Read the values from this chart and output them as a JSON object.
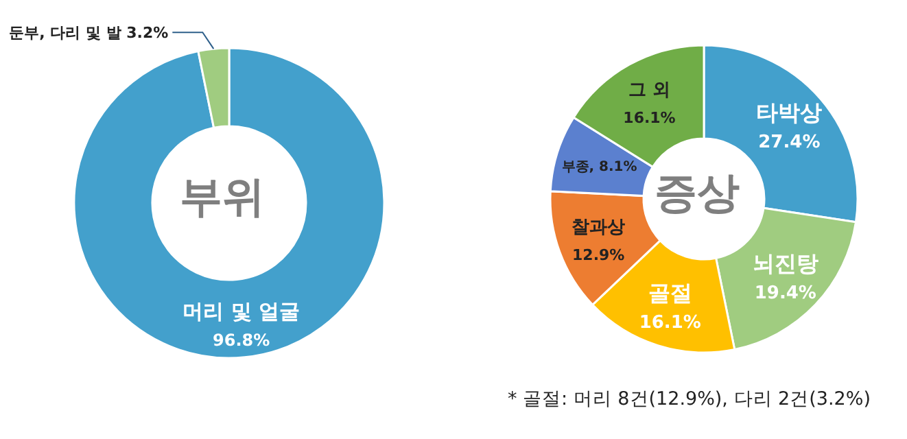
{
  "chart_data": [
    {
      "type": "donut",
      "title": "부위",
      "categories": [
        "머리 및 얼굴",
        "둔부, 다리 및 발"
      ],
      "values": [
        96.8,
        3.2
      ],
      "colors": [
        "#43a0cc",
        "#a0cc80"
      ],
      "value_labels": [
        "96.8%",
        "3.2%"
      ]
    },
    {
      "type": "donut",
      "title": "증상",
      "categories": [
        "타박상",
        "뇌진탕",
        "골절",
        "찰과상",
        "부종",
        "그 외"
      ],
      "values": [
        27.4,
        19.4,
        16.1,
        12.9,
        8.1,
        16.1
      ],
      "colors": [
        "#43a0cc",
        "#a0cc80",
        "#ffc000",
        "#ed7d31",
        "#5b80cf",
        "#70ad47"
      ],
      "value_labels": [
        "27.4%",
        "19.4%",
        "16.1%",
        "12.9%",
        ", 8.1%",
        "16.1%"
      ],
      "annotations": [
        "* 골절: 머리 8건(12.9%), 다리 2건(3.2%)"
      ]
    }
  ]
}
